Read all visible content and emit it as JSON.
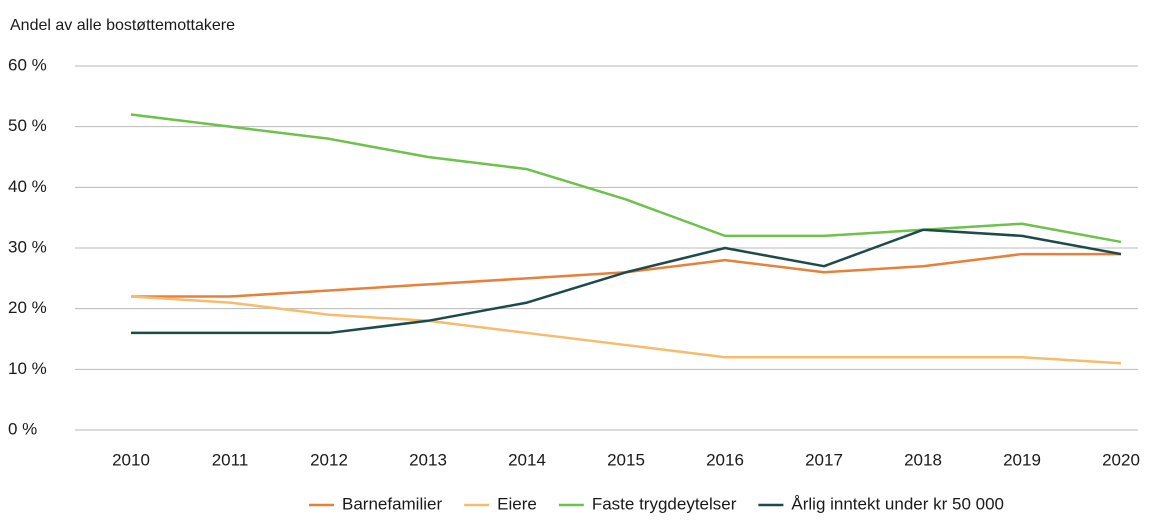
{
  "chart_data": {
    "type": "line",
    "title": "Andel av alle bostøttemottakere",
    "categories": [
      "2010",
      "2011",
      "2012",
      "2013",
      "2014",
      "2015",
      "2016",
      "2017",
      "2018",
      "2019",
      "2020"
    ],
    "series": [
      {
        "name": "Barnefamilier",
        "color": "#e8803a",
        "values": [
          22,
          22,
          23,
          24,
          25,
          26,
          28,
          26,
          27,
          29,
          29
        ]
      },
      {
        "name": "Eiere",
        "color": "#f8bb6c",
        "values": [
          22,
          21,
          19,
          18,
          16,
          14,
          12,
          12,
          12,
          12,
          11
        ]
      },
      {
        "name": "Faste trygdeytelser",
        "color": "#6cc24a",
        "values": [
          52,
          50,
          48,
          45,
          43,
          38,
          32,
          32,
          33,
          34,
          31
        ]
      },
      {
        "name": "Årlig inntekt under kr 50 000",
        "color": "#1d4a4a",
        "values": [
          16,
          16,
          16,
          18,
          21,
          26,
          30,
          27,
          33,
          32,
          29
        ]
      }
    ],
    "ylim": [
      0,
      60
    ],
    "yticks": [
      {
        "value": 0,
        "label": "0 %"
      },
      {
        "value": 10,
        "label": "10 %"
      },
      {
        "value": 20,
        "label": "20 %"
      },
      {
        "value": 30,
        "label": "30 %"
      },
      {
        "value": 40,
        "label": "40 %"
      },
      {
        "value": 50,
        "label": "50 %"
      },
      {
        "value": 60,
        "label": "60 %"
      }
    ],
    "grid": true,
    "legend": "bottom"
  }
}
